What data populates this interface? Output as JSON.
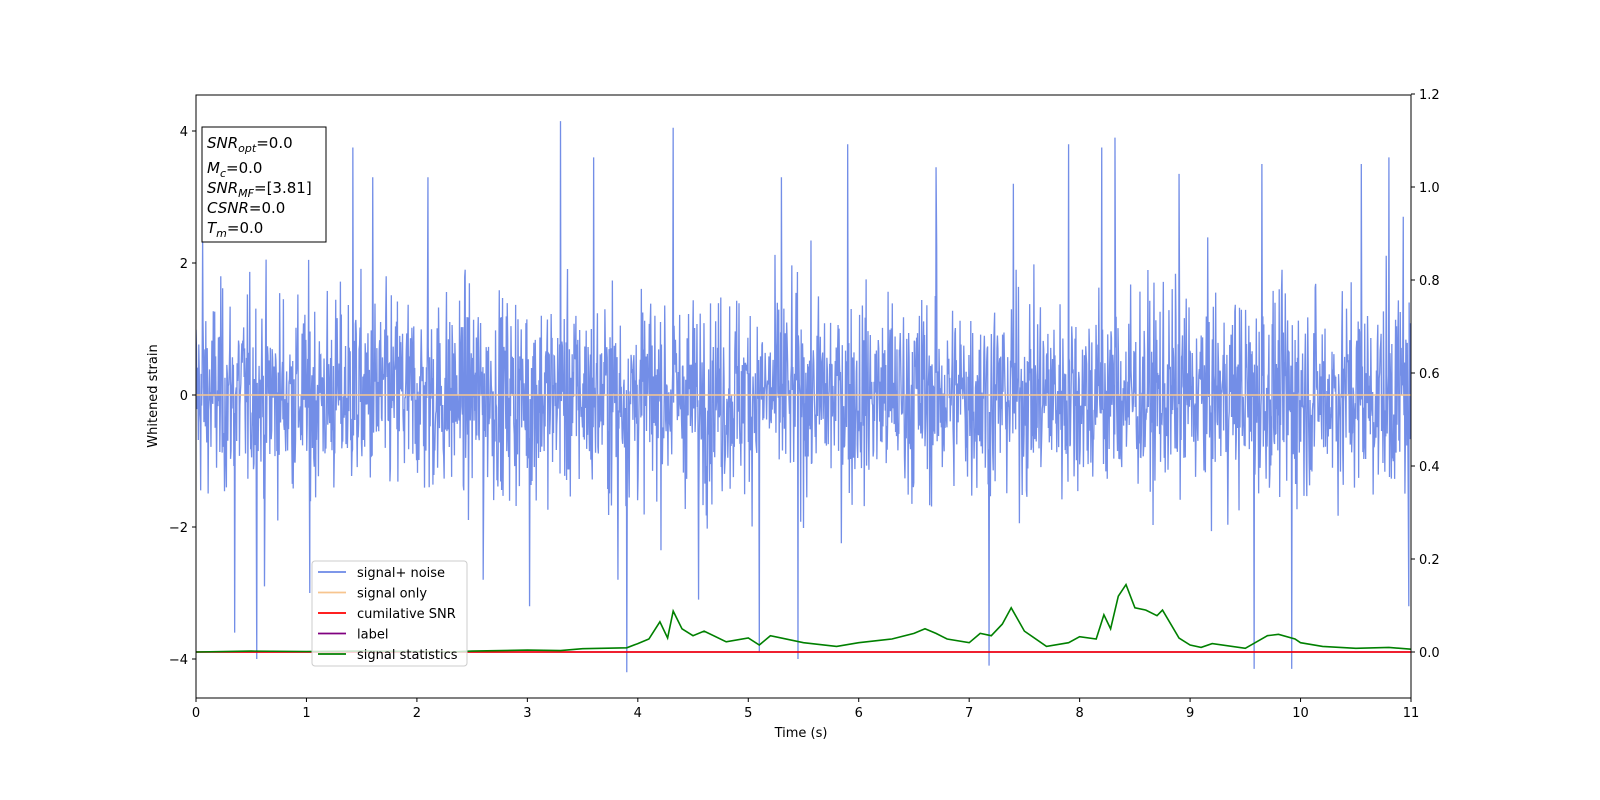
{
  "chart_data": {
    "type": "line",
    "xlabel": "Time (s)",
    "ylabel": "Whitened strain",
    "xlim": [
      0,
      11
    ],
    "ylim": [
      -4.6,
      4.6
    ],
    "ylim_right": [
      -0.1,
      1.2
    ],
    "x_ticks": [
      "0",
      "1",
      "2",
      "3",
      "4",
      "5",
      "6",
      "7",
      "8",
      "9",
      "10",
      "11"
    ],
    "y_ticks": [
      "4",
      "2",
      "0",
      "−2",
      "−4"
    ],
    "y_ticks_right": [
      "1.2",
      "1.0",
      "0.8",
      "0.6",
      "0.4",
      "0.2",
      "0.0"
    ],
    "info_box": {
      "line1": {
        "sym": "SNR",
        "sub": "opt",
        "rest": "=0.0"
      },
      "line2": {
        "sym": "M",
        "sub": "c",
        "rest": "=0.0"
      },
      "line3": {
        "sym": "SNR",
        "sub": "MF",
        "rest": "=[3.81]"
      },
      "line4": {
        "sym": "CSNR",
        "sub": "",
        "rest": "=0.0"
      },
      "line5": {
        "sym": "T",
        "sub": "m",
        "rest": "=0.0"
      }
    },
    "legend_position": "lower-left",
    "series": [
      {
        "name": "signal+ noise",
        "color": "#6b88e6",
        "axis": "left",
        "description_values": "noise band roughly between -2.0 and 2.3 with spikes",
        "spikes": [
          [
            0.06,
            2.4
          ],
          [
            0.35,
            -3.6
          ],
          [
            0.55,
            -4.0
          ],
          [
            0.62,
            -2.9
          ],
          [
            1.03,
            -3.0
          ],
          [
            1.42,
            3.75
          ],
          [
            1.6,
            3.3
          ],
          [
            2.1,
            3.3
          ],
          [
            2.6,
            -2.8
          ],
          [
            3.02,
            -3.2
          ],
          [
            3.3,
            4.15
          ],
          [
            3.6,
            3.6
          ],
          [
            3.82,
            -2.8
          ],
          [
            3.9,
            -4.2
          ],
          [
            4.32,
            4.05
          ],
          [
            4.55,
            -3.1
          ],
          [
            5.1,
            -3.9
          ],
          [
            5.3,
            3.3
          ],
          [
            5.45,
            -4.0
          ],
          [
            5.9,
            3.8
          ],
          [
            6.7,
            3.45
          ],
          [
            7.18,
            -4.1
          ],
          [
            7.4,
            3.2
          ],
          [
            7.9,
            3.8
          ],
          [
            8.2,
            3.75
          ],
          [
            8.32,
            3.9
          ],
          [
            8.9,
            3.35
          ],
          [
            9.58,
            -4.15
          ],
          [
            9.65,
            3.5
          ],
          [
            9.92,
            -4.15
          ],
          [
            10.55,
            3.5
          ],
          [
            10.8,
            3.6
          ],
          [
            10.93,
            2.7
          ],
          [
            10.98,
            -3.2
          ]
        ]
      },
      {
        "name": "signal only",
        "color": "#f7c58f",
        "axis": "left",
        "values_constant": 0.0
      },
      {
        "name": "cumilative SNR",
        "color": "#ff0000",
        "axis": "right",
        "values_constant": 0.0
      },
      {
        "name": "label",
        "color": "#800080",
        "axis": "right",
        "values_constant": 0.0
      },
      {
        "name": "signal statistics",
        "color": "#008000",
        "axis": "right",
        "points": [
          [
            0,
            0.0
          ],
          [
            0.5,
            0.002
          ],
          [
            1.0,
            0.001
          ],
          [
            1.5,
            0.002
          ],
          [
            2.0,
            0.001
          ],
          [
            2.3,
            0.0
          ],
          [
            2.5,
            0.002
          ],
          [
            3.0,
            0.004
          ],
          [
            3.3,
            0.003
          ],
          [
            3.5,
            0.007
          ],
          [
            3.9,
            0.009
          ],
          [
            4.0,
            0.018
          ],
          [
            4.1,
            0.028
          ],
          [
            4.2,
            0.065
          ],
          [
            4.27,
            0.03
          ],
          [
            4.32,
            0.088
          ],
          [
            4.4,
            0.05
          ],
          [
            4.5,
            0.035
          ],
          [
            4.6,
            0.045
          ],
          [
            4.8,
            0.022
          ],
          [
            5.0,
            0.03
          ],
          [
            5.1,
            0.015
          ],
          [
            5.2,
            0.035
          ],
          [
            5.5,
            0.02
          ],
          [
            5.8,
            0.012
          ],
          [
            6.0,
            0.02
          ],
          [
            6.3,
            0.028
          ],
          [
            6.5,
            0.04
          ],
          [
            6.6,
            0.05
          ],
          [
            6.7,
            0.04
          ],
          [
            6.8,
            0.028
          ],
          [
            7.0,
            0.02
          ],
          [
            7.1,
            0.04
          ],
          [
            7.2,
            0.035
          ],
          [
            7.3,
            0.06
          ],
          [
            7.38,
            0.095
          ],
          [
            7.5,
            0.045
          ],
          [
            7.7,
            0.012
          ],
          [
            7.9,
            0.02
          ],
          [
            8.0,
            0.033
          ],
          [
            8.15,
            0.028
          ],
          [
            8.22,
            0.08
          ],
          [
            8.28,
            0.05
          ],
          [
            8.35,
            0.12
          ],
          [
            8.42,
            0.145
          ],
          [
            8.5,
            0.095
          ],
          [
            8.6,
            0.09
          ],
          [
            8.7,
            0.078
          ],
          [
            8.75,
            0.09
          ],
          [
            8.9,
            0.03
          ],
          [
            9.0,
            0.015
          ],
          [
            9.1,
            0.01
          ],
          [
            9.2,
            0.018
          ],
          [
            9.5,
            0.008
          ],
          [
            9.7,
            0.035
          ],
          [
            9.8,
            0.038
          ],
          [
            9.95,
            0.028
          ],
          [
            10.0,
            0.02
          ],
          [
            10.2,
            0.012
          ],
          [
            10.5,
            0.008
          ],
          [
            10.8,
            0.01
          ],
          [
            11.0,
            0.006
          ]
        ]
      }
    ]
  }
}
